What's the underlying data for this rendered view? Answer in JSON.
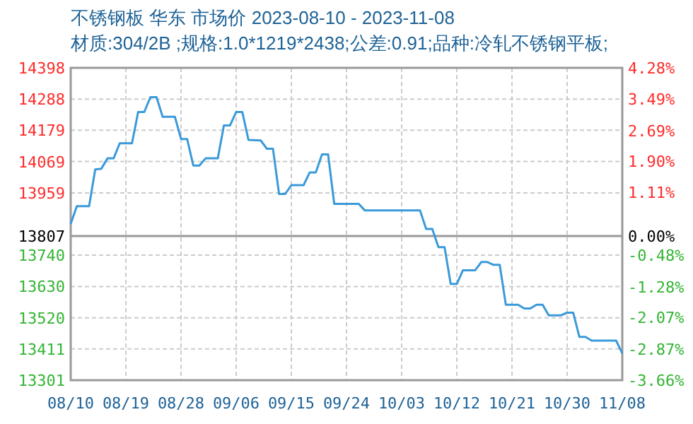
{
  "chart_data": {
    "type": "line",
    "title": "不锈钢板 华东 市场价 2023-08-10 - 2023-11-08",
    "subtitle": "材质:304/2B ;规格:1.0*1219*2438;公差:0.91;品种:冷轧不锈钢平板;",
    "series": [
      {
        "color": "#3a9ad9",
        "x": [
          "2023-08-10",
          "2023-08-11",
          "2023-08-13",
          "2023-08-14",
          "2023-08-15",
          "2023-08-16",
          "2023-08-17",
          "2023-08-18",
          "2023-08-20",
          "2023-08-21",
          "2023-08-22",
          "2023-08-23",
          "2023-08-24",
          "2023-08-25",
          "2023-08-27",
          "2023-08-28",
          "2023-08-29",
          "2023-08-30",
          "2023-08-31",
          "2023-09-01",
          "2023-09-03",
          "2023-09-04",
          "2023-09-05",
          "2023-09-06",
          "2023-09-07",
          "2023-09-08",
          "2023-09-10",
          "2023-09-11",
          "2023-09-12",
          "2023-09-13",
          "2023-09-14",
          "2023-09-15",
          "2023-09-17",
          "2023-09-18",
          "2023-09-19",
          "2023-09-20",
          "2023-09-21",
          "2023-09-22",
          "2023-09-26",
          "2023-09-27",
          "2023-10-06",
          "2023-10-07",
          "2023-10-08",
          "2023-10-09",
          "2023-10-10",
          "2023-10-11",
          "2023-10-12",
          "2023-10-13",
          "2023-10-15",
          "2023-10-16",
          "2023-10-17",
          "2023-10-18",
          "2023-10-19",
          "2023-10-20",
          "2023-10-22",
          "2023-10-23",
          "2023-10-24",
          "2023-10-25",
          "2023-10-26",
          "2023-10-27",
          "2023-10-29",
          "2023-10-30",
          "2023-10-31",
          "2023-11-01",
          "2023-11-02",
          "2023-11-03",
          "2023-11-07",
          "2023-11-08"
        ],
        "values": [
          13850,
          13912,
          13912,
          14041,
          14044,
          14080,
          14080,
          14133,
          14133,
          14243,
          14243,
          14295,
          14295,
          14226,
          14226,
          14148,
          14148,
          14055,
          14055,
          14080,
          14080,
          14196,
          14196,
          14243,
          14243,
          14145,
          14143,
          14114,
          14114,
          13955,
          13955,
          13986,
          13986,
          14031,
          14031,
          14094,
          14094,
          13920,
          13920,
          13897,
          13897,
          13832,
          13832,
          13768,
          13768,
          13639,
          13639,
          13687,
          13687,
          13716,
          13716,
          13706,
          13706,
          13566,
          13566,
          13553,
          13553,
          13566,
          13566,
          13529,
          13529,
          13538,
          13538,
          13453,
          13453,
          13440,
          13440,
          13395
        ]
      }
    ],
    "xlim": [
      "2023-08-10",
      "2023-11-08"
    ],
    "xticks": [
      {
        "value": "2023-08-10",
        "label": "08/10"
      },
      {
        "value": "2023-08-19",
        "label": "08/19"
      },
      {
        "value": "2023-08-28",
        "label": "08/28"
      },
      {
        "value": "2023-09-06",
        "label": "09/06"
      },
      {
        "value": "2023-09-15",
        "label": "09/15"
      },
      {
        "value": "2023-09-24",
        "label": "09/24"
      },
      {
        "value": "2023-10-03",
        "label": "10/03"
      },
      {
        "value": "2023-10-12",
        "label": "10/12"
      },
      {
        "value": "2023-10-21",
        "label": "10/21"
      },
      {
        "value": "2023-10-30",
        "label": "10/30"
      },
      {
        "value": "2023-11-08",
        "label": "11/08"
      }
    ],
    "ylim": [
      13301,
      14398
    ],
    "yticks": [
      14398,
      14288,
      14179,
      14069,
      13959,
      13807,
      13740,
      13630,
      13520,
      13411,
      13301
    ],
    "y2lim": [
      -3.66,
      4.28
    ],
    "y2ticks": [
      {
        "value": 4.28,
        "label": "4.28%"
      },
      {
        "value": 3.49,
        "label": "3.49%"
      },
      {
        "value": 2.69,
        "label": "2.69%"
      },
      {
        "value": 1.9,
        "label": "1.90%"
      },
      {
        "value": 1.11,
        "label": "1.11%"
      },
      {
        "value": 0,
        "label": "0.00%"
      },
      {
        "value": -0.48,
        "label": "-0.48%"
      },
      {
        "value": -1.28,
        "label": "-1.28%"
      },
      {
        "value": -2.07,
        "label": "-2.07%"
      },
      {
        "value": -2.87,
        "label": "-2.87%"
      },
      {
        "value": -3.66,
        "label": "-3.66%"
      }
    ],
    "ref_lines": [
      {
        "axis": "y",
        "value": 13807,
        "color": "#999999"
      }
    ],
    "grid": true,
    "marker": "none",
    "line_style": "solid"
  }
}
